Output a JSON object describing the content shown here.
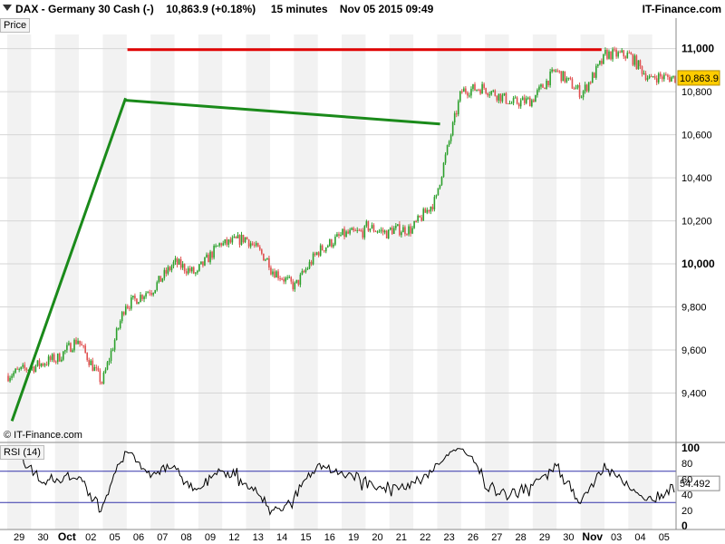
{
  "header": {
    "title": "DAX - Germany 30 Cash (-)",
    "price": "10,863.9 (+0.18%)",
    "interval": "15 minutes",
    "datetime": "Nov 05 2015 09:49",
    "brand": "IT-Finance.com"
  },
  "price_panel_label": "Price",
  "rsi_panel_label": "RSI (14)",
  "copyright": "© IT-Finance.com",
  "colors": {
    "up": "#2ca02c",
    "down": "#e05050",
    "trendline": "#1a8a1a",
    "resistance": "#e00000",
    "price_tag": "#ffcc00",
    "rsi_line": "#000000",
    "rsi_band": "#3333aa"
  },
  "chart_data": [
    {
      "type": "line",
      "panel": "price",
      "title": "",
      "ylim": [
        9280,
        11070
      ],
      "y_ticks": [
        "9,400",
        "9,600",
        "9,800",
        "10,000",
        "10,200",
        "10,400",
        "10,600",
        "10,800",
        "11,000"
      ],
      "y_tick_values": [
        9400,
        9600,
        9800,
        10000,
        10200,
        10400,
        10600,
        10800,
        11000
      ],
      "last_price": "10,863.9",
      "last_price_value": 10863.9,
      "categories": [
        "29",
        "30",
        "Oct",
        "02",
        "05",
        "06",
        "07",
        "08",
        "09",
        "12",
        "13",
        "14",
        "15",
        "16",
        "19",
        "20",
        "21",
        "22",
        "23",
        "26",
        "27",
        "28",
        "29",
        "30",
        "Nov",
        "03",
        "04",
        "05"
      ],
      "daily_close": [
        9520,
        9560,
        9650,
        9450,
        9820,
        9880,
        10000,
        9950,
        10100,
        10120,
        10010,
        9900,
        10050,
        10130,
        10150,
        10140,
        10160,
        10300,
        10780,
        10820,
        10760,
        10760,
        10900,
        10800,
        10950,
        10970,
        10850,
        10864
      ],
      "annotations": {
        "trendline_primary": {
          "from": [
            "29",
            9270
          ],
          "to": [
            "05",
            10770
          ]
        },
        "trendline_secondary": {
          "from": [
            "23",
            10650
          ],
          "to": [
            "05",
            10760
          ]
        },
        "resistance": {
          "from": [
            "Nov",
            10995
          ],
          "to": [
            "05",
            10995
          ]
        }
      }
    },
    {
      "type": "line",
      "panel": "rsi",
      "title": "RSI (14)",
      "ylim": [
        0,
        100
      ],
      "y_ticks": [
        "0",
        "20",
        "40",
        "60",
        "80",
        "100"
      ],
      "y_tick_values": [
        0,
        20,
        40,
        60,
        80,
        100
      ],
      "bands": [
        30,
        70
      ],
      "last_value": "54.492",
      "last_value_num": 54.492
    }
  ]
}
